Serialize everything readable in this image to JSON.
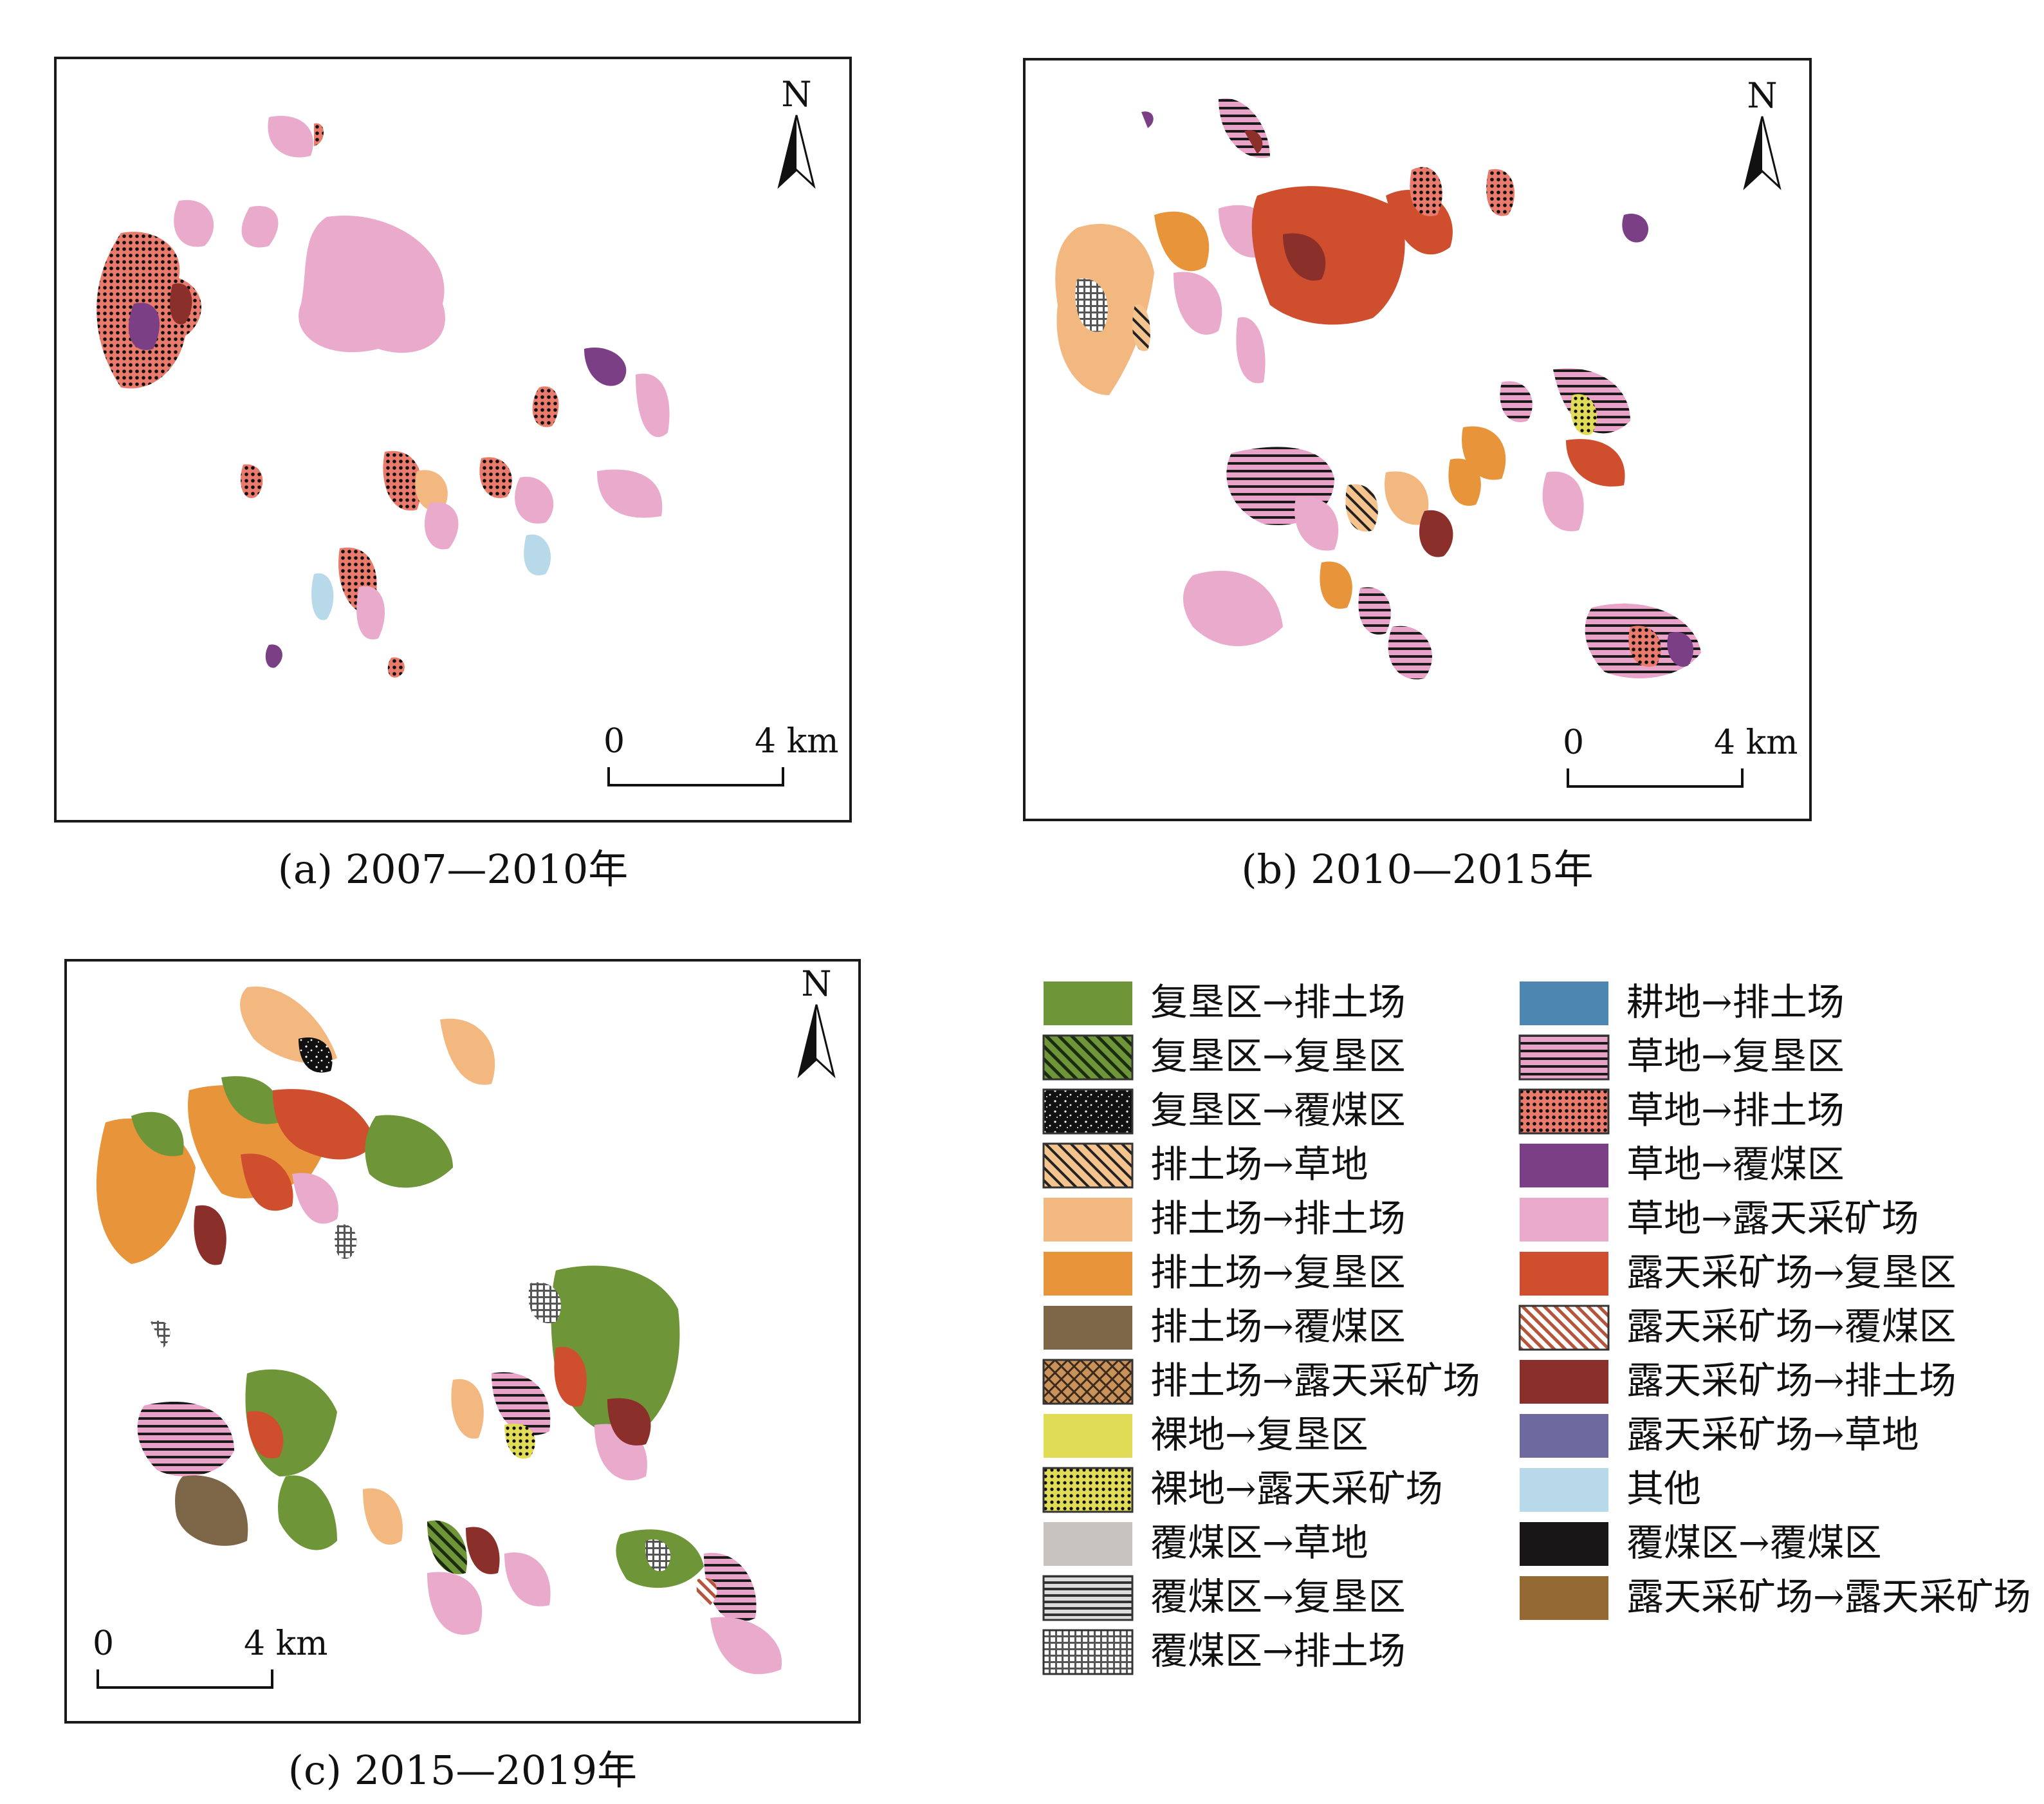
{
  "panels": [
    {
      "caption": "(a) 2007—2010年",
      "north": "N",
      "scale_start": "0",
      "scale_end": "4 km"
    },
    {
      "caption": "(b) 2010—2015年",
      "north": "N",
      "scale_start": "0",
      "scale_end": "4 km"
    },
    {
      "caption": "(c) 2015—2019年",
      "north": "N",
      "scale_start": "0",
      "scale_end": "4 km"
    }
  ],
  "legend": {
    "left": [
      {
        "label": "复垦区→排土场",
        "color": "#6e9537",
        "pattern": "solid"
      },
      {
        "label": "复垦区→复垦区",
        "color": "#6e9537",
        "pattern": "hatch-green"
      },
      {
        "label": "复垦区→覆煤区",
        "color": "#111111",
        "pattern": "speckle-black"
      },
      {
        "label": "排土场→草地",
        "color": "#f4c38e",
        "pattern": "hatch-tan"
      },
      {
        "label": "排土场→排土场",
        "color": "#f2b880",
        "pattern": "solid"
      },
      {
        "label": "排土场→复垦区",
        "color": "#e8943a",
        "pattern": "solid"
      },
      {
        "label": "排土场→覆煤区",
        "color": "#7d6548",
        "pattern": "solid"
      },
      {
        "label": "排土场→露天采矿场",
        "color": "#c8925a",
        "pattern": "crosshatch-brown"
      },
      {
        "label": "裸地→复垦区",
        "color": "#e0dc56",
        "pattern": "solid"
      },
      {
        "label": "裸地→露天采矿场",
        "color": "#e0dc56",
        "pattern": "dots-yellow"
      },
      {
        "label": "覆煤区→草地",
        "color": "#c9c3c0",
        "pattern": "solid"
      },
      {
        "label": "覆煤区→复垦区",
        "color": "#9a9a9a",
        "pattern": "stripes-gray"
      },
      {
        "label": "覆煤区→排土场",
        "color": "#ffffff",
        "pattern": "grid-gray"
      }
    ],
    "right": [
      {
        "label": "耕地→排土场",
        "color": "#4d86b1",
        "pattern": "solid"
      },
      {
        "label": "草地→复垦区",
        "color": "#e9a3c8",
        "pattern": "stripes-pink"
      },
      {
        "label": "草地→排土场",
        "color": "#ea7a6b",
        "pattern": "dots-red"
      },
      {
        "label": "草地→覆煤区",
        "color": "#7b3f86",
        "pattern": "solid"
      },
      {
        "label": "草地→露天采矿场",
        "color": "#e9aacb",
        "pattern": "solid"
      },
      {
        "label": "露天采矿场→复垦区",
        "color": "#cf4e2d",
        "pattern": "solid"
      },
      {
        "label": "露天采矿场→覆煤区",
        "color": "#b5543a",
        "pattern": "hatch-red"
      },
      {
        "label": "露天采矿场→排土场",
        "color": "#8b2f2a",
        "pattern": "solid"
      },
      {
        "label": "露天采矿场→草地",
        "color": "#6e6aa0",
        "pattern": "solid"
      },
      {
        "label": "其他",
        "color": "#b8d9ea",
        "pattern": "solid"
      },
      {
        "label": "覆煤区→覆煤区",
        "color": "#181616",
        "pattern": "solid"
      },
      {
        "label": "露天采矿场→露天采矿场",
        "color": "#946933",
        "pattern": "solid"
      }
    ]
  }
}
